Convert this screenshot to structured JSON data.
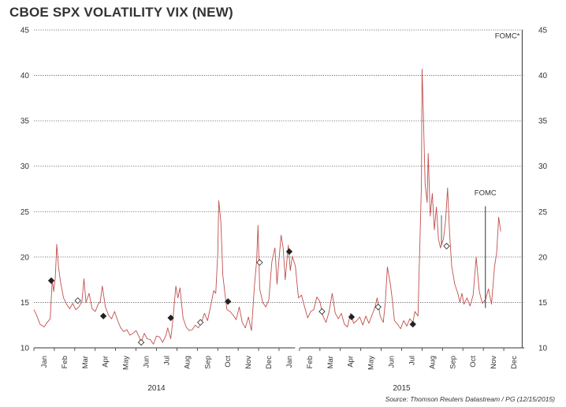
{
  "title": "CBOE SPX VOLATILITY VIX (NEW)",
  "source": "Source: Thomson Reuters Datastream / PG (12/15/2015)",
  "chart_data": {
    "type": "line",
    "title": "CBOE SPX VOLATILITY VIX (NEW)",
    "xlabel": "",
    "ylabel": "",
    "ylim": [
      10,
      45
    ],
    "yticks": [
      10,
      15,
      20,
      25,
      30,
      35,
      40,
      45
    ],
    "grid": "horizontal-dotted",
    "x_domain_months": [
      0,
      24
    ],
    "month_labels": [
      "Jan",
      "Feb",
      "Mar",
      "Apr",
      "May",
      "Jun",
      "Jul",
      "Aug",
      "Sep",
      "Oct",
      "Nov",
      "Dec",
      "Jan",
      "Feb",
      "Mar",
      "Apr",
      "May",
      "Jun",
      "Jul",
      "Aug",
      "Sep",
      "Oct",
      "Nov",
      "Dec"
    ],
    "year_labels": [
      {
        "label": "2014",
        "center": 6
      },
      {
        "label": "2015",
        "center": 18
      }
    ],
    "series": [
      {
        "name": "VIX",
        "color": "#c0504d",
        "points": [
          [
            0.0,
            14.2
          ],
          [
            0.15,
            13.5
          ],
          [
            0.3,
            12.6
          ],
          [
            0.5,
            12.3
          ],
          [
            0.65,
            12.8
          ],
          [
            0.8,
            13.2
          ],
          [
            0.9,
            17.5
          ],
          [
            0.97,
            16.2
          ],
          [
            1.05,
            17.8
          ],
          [
            1.12,
            21.4
          ],
          [
            1.2,
            19.0
          ],
          [
            1.3,
            17.3
          ],
          [
            1.45,
            15.5
          ],
          [
            1.6,
            14.8
          ],
          [
            1.75,
            14.3
          ],
          [
            1.9,
            14.9
          ],
          [
            2.05,
            14.2
          ],
          [
            2.2,
            14.5
          ],
          [
            2.35,
            15.1
          ],
          [
            2.45,
            17.6
          ],
          [
            2.55,
            15.0
          ],
          [
            2.7,
            16.0
          ],
          [
            2.85,
            14.3
          ],
          [
            3.0,
            14.0
          ],
          [
            3.15,
            14.8
          ],
          [
            3.25,
            15.1
          ],
          [
            3.35,
            16.8
          ],
          [
            3.5,
            14.5
          ],
          [
            3.65,
            13.6
          ],
          [
            3.8,
            13.2
          ],
          [
            3.95,
            14.0
          ],
          [
            4.1,
            13.0
          ],
          [
            4.25,
            12.2
          ],
          [
            4.4,
            11.8
          ],
          [
            4.55,
            12.0
          ],
          [
            4.7,
            11.4
          ],
          [
            4.85,
            11.6
          ],
          [
            5.0,
            11.9
          ],
          [
            5.15,
            11.2
          ],
          [
            5.25,
            10.6
          ],
          [
            5.4,
            11.6
          ],
          [
            5.55,
            11.0
          ],
          [
            5.7,
            10.9
          ],
          [
            5.85,
            10.4
          ],
          [
            6.0,
            11.3
          ],
          [
            6.15,
            11.2
          ],
          [
            6.3,
            10.6
          ],
          [
            6.45,
            11.3
          ],
          [
            6.55,
            12.2
          ],
          [
            6.7,
            11.0
          ],
          [
            6.8,
            13.0
          ],
          [
            6.95,
            16.8
          ],
          [
            7.05,
            15.5
          ],
          [
            7.15,
            16.6
          ],
          [
            7.3,
            13.3
          ],
          [
            7.45,
            12.3
          ],
          [
            7.6,
            11.9
          ],
          [
            7.75,
            12.0
          ],
          [
            7.9,
            12.5
          ],
          [
            8.05,
            12.2
          ],
          [
            8.2,
            12.8
          ],
          [
            8.35,
            13.8
          ],
          [
            8.5,
            13.0
          ],
          [
            8.65,
            14.6
          ],
          [
            8.8,
            16.3
          ],
          [
            8.9,
            16.0
          ],
          [
            9.0,
            20.5
          ],
          [
            9.05,
            26.2
          ],
          [
            9.15,
            24.0
          ],
          [
            9.25,
            18.0
          ],
          [
            9.35,
            16.0
          ],
          [
            9.45,
            14.2
          ],
          [
            9.6,
            14.0
          ],
          [
            9.75,
            13.6
          ],
          [
            9.9,
            13.1
          ],
          [
            10.05,
            14.5
          ],
          [
            10.2,
            12.8
          ],
          [
            10.35,
            12.2
          ],
          [
            10.5,
            13.4
          ],
          [
            10.65,
            11.9
          ],
          [
            10.8,
            17.0
          ],
          [
            10.9,
            19.5
          ],
          [
            10.97,
            23.5
          ],
          [
            11.05,
            16.5
          ],
          [
            11.2,
            15.0
          ],
          [
            11.35,
            14.5
          ],
          [
            11.5,
            15.3
          ],
          [
            11.65,
            19.5
          ],
          [
            11.8,
            21.0
          ],
          [
            11.9,
            17.0
          ],
          [
            12.0,
            19.8
          ],
          [
            12.1,
            22.4
          ],
          [
            12.2,
            21.0
          ],
          [
            12.3,
            17.5
          ],
          [
            12.45,
            21.3
          ],
          [
            12.55,
            18.5
          ],
          [
            12.65,
            20.1
          ],
          [
            12.8,
            19.0
          ],
          [
            12.95,
            15.5
          ],
          [
            13.1,
            15.8
          ],
          [
            13.25,
            14.5
          ],
          [
            13.4,
            13.3
          ],
          [
            13.55,
            14.0
          ],
          [
            13.7,
            14.2
          ],
          [
            13.85,
            15.6
          ],
          [
            14.0,
            15.1
          ],
          [
            14.15,
            13.5
          ],
          [
            14.3,
            12.8
          ],
          [
            14.45,
            14.0
          ],
          [
            14.6,
            16.0
          ],
          [
            14.75,
            13.8
          ],
          [
            14.9,
            13.2
          ],
          [
            15.05,
            13.8
          ],
          [
            15.2,
            12.6
          ],
          [
            15.35,
            12.3
          ],
          [
            15.5,
            13.8
          ],
          [
            15.65,
            12.7
          ],
          [
            15.8,
            13.0
          ],
          [
            15.95,
            13.4
          ],
          [
            16.1,
            12.5
          ],
          [
            16.25,
            13.5
          ],
          [
            16.4,
            12.7
          ],
          [
            16.55,
            13.6
          ],
          [
            16.7,
            14.5
          ],
          [
            16.8,
            15.5
          ],
          [
            16.95,
            13.5
          ],
          [
            17.1,
            12.8
          ],
          [
            17.2,
            15.0
          ],
          [
            17.3,
            18.9
          ],
          [
            17.45,
            17.0
          ],
          [
            17.55,
            15.2
          ],
          [
            17.65,
            13.0
          ],
          [
            17.8,
            12.6
          ],
          [
            17.95,
            12.1
          ],
          [
            18.1,
            13.0
          ],
          [
            18.25,
            12.4
          ],
          [
            18.4,
            13.2
          ],
          [
            18.55,
            12.8
          ],
          [
            18.65,
            14.0
          ],
          [
            18.8,
            13.5
          ],
          [
            18.9,
            22.0
          ],
          [
            18.97,
            28.0
          ],
          [
            19.0,
            40.7
          ],
          [
            19.05,
            37.0
          ],
          [
            19.15,
            28.0
          ],
          [
            19.25,
            26.0
          ],
          [
            19.3,
            31.4
          ],
          [
            19.4,
            24.5
          ],
          [
            19.5,
            27.0
          ],
          [
            19.6,
            23.0
          ],
          [
            19.7,
            25.5
          ],
          [
            19.8,
            22.0
          ],
          [
            19.9,
            21.0
          ],
          [
            20.05,
            22.0
          ],
          [
            20.15,
            24.0
          ],
          [
            20.25,
            27.6
          ],
          [
            20.35,
            22.5
          ],
          [
            20.45,
            19.0
          ],
          [
            20.6,
            17.0
          ],
          [
            20.75,
            16.0
          ],
          [
            20.85,
            15.0
          ],
          [
            20.95,
            16.0
          ],
          [
            21.05,
            14.8
          ],
          [
            21.2,
            15.5
          ],
          [
            21.35,
            14.6
          ],
          [
            21.5,
            15.8
          ],
          [
            21.65,
            20.0
          ],
          [
            21.8,
            16.2
          ],
          [
            21.95,
            14.9
          ],
          [
            22.1,
            15.3
          ],
          [
            22.25,
            16.5
          ],
          [
            22.4,
            14.8
          ],
          [
            22.55,
            19.0
          ],
          [
            22.65,
            20.4
          ],
          [
            22.75,
            24.4
          ],
          [
            22.85,
            22.8
          ]
        ]
      }
    ],
    "markers": [
      {
        "month": 0.85,
        "value": 17.4,
        "fill": "filled"
      },
      {
        "month": 2.15,
        "value": 15.2,
        "fill": "open"
      },
      {
        "month": 3.4,
        "value": 13.5,
        "fill": "filled"
      },
      {
        "month": 5.25,
        "value": 10.6,
        "fill": "open"
      },
      {
        "month": 6.7,
        "value": 13.3,
        "fill": "filled"
      },
      {
        "month": 8.15,
        "value": 12.8,
        "fill": "open"
      },
      {
        "month": 9.5,
        "value": 15.1,
        "fill": "filled"
      },
      {
        "month": 11.05,
        "value": 19.4,
        "fill": "open"
      },
      {
        "month": 12.5,
        "value": 20.6,
        "fill": "filled"
      },
      {
        "month": 14.1,
        "value": 14.0,
        "fill": "open"
      },
      {
        "month": 15.55,
        "value": 13.4,
        "fill": "filled"
      },
      {
        "month": 16.85,
        "value": 14.5,
        "fill": "open"
      },
      {
        "month": 18.55,
        "value": 12.6,
        "fill": "filled"
      },
      {
        "month": 20.2,
        "value": 21.2,
        "fill": "open"
      }
    ],
    "annotations": [
      {
        "label": "FOMC*",
        "month": 23.9,
        "value": 45
      },
      {
        "label": "FOMC",
        "month": 22.1,
        "value": 25.6
      }
    ]
  }
}
